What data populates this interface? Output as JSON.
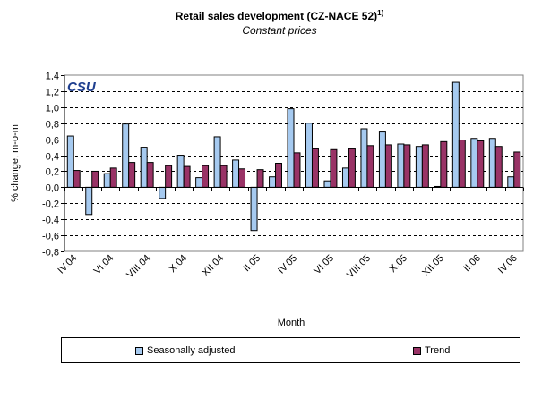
{
  "chart_data": {
    "type": "bar",
    "title": "Retail sales development (CZ-NACE 52)",
    "title_superscript": "1)",
    "subtitle": "Constant prices",
    "xlabel": "Month",
    "ylabel": "% change, m-o-m",
    "ylim": [
      -0.8,
      1.4
    ],
    "yticks": [
      "-0,8",
      "-0,6",
      "-0,4",
      "-0,2",
      "0,0",
      "0,2",
      "0,4",
      "0,6",
      "0,8",
      "1,0",
      "1,2",
      "1,4"
    ],
    "grid": true,
    "legend_position": "bottom",
    "logo": "CSU",
    "categories": [
      "IV.04",
      "V.04",
      "VI.04",
      "VII.04",
      "VIII.04",
      "IX.04",
      "X.04",
      "XI.04",
      "XII.04",
      "I.05",
      "II.05",
      "III.05",
      "IV.05",
      "V.05",
      "VI.05",
      "VII.05",
      "VIII.05",
      "IX.05",
      "X.05",
      "XI.05",
      "XII.05",
      "I.06",
      "II.06",
      "III.06",
      "IV.06"
    ],
    "xtick_labels": [
      "IV.04",
      "",
      "VI.04",
      "",
      "VIII.04",
      "",
      "X.04",
      "",
      "XII.04",
      "",
      "II.05",
      "",
      "IV.05",
      "",
      "VI.05",
      "",
      "VIII.05",
      "",
      "X.05",
      "",
      "XII.05",
      "",
      "II.06",
      "",
      "IV.06"
    ],
    "series": [
      {
        "name": "Seasonally adjusted",
        "color": "#a6caf0",
        "values": [
          0.64,
          -0.34,
          0.17,
          0.79,
          0.5,
          -0.14,
          0.4,
          0.12,
          0.63,
          0.34,
          -0.54,
          0.13,
          0.98,
          0.8,
          0.08,
          0.24,
          0.73,
          0.69,
          0.54,
          0.51,
          0.01,
          1.31,
          0.61,
          0.61,
          0.13
        ]
      },
      {
        "name": "Trend",
        "color": "#993366",
        "values": [
          0.21,
          0.2,
          0.24,
          0.31,
          0.31,
          0.27,
          0.26,
          0.27,
          0.27,
          0.23,
          0.22,
          0.3,
          0.43,
          0.48,
          0.47,
          0.48,
          0.52,
          0.53,
          0.53,
          0.53,
          0.57,
          0.59,
          0.58,
          0.51,
          0.44
        ]
      }
    ]
  }
}
